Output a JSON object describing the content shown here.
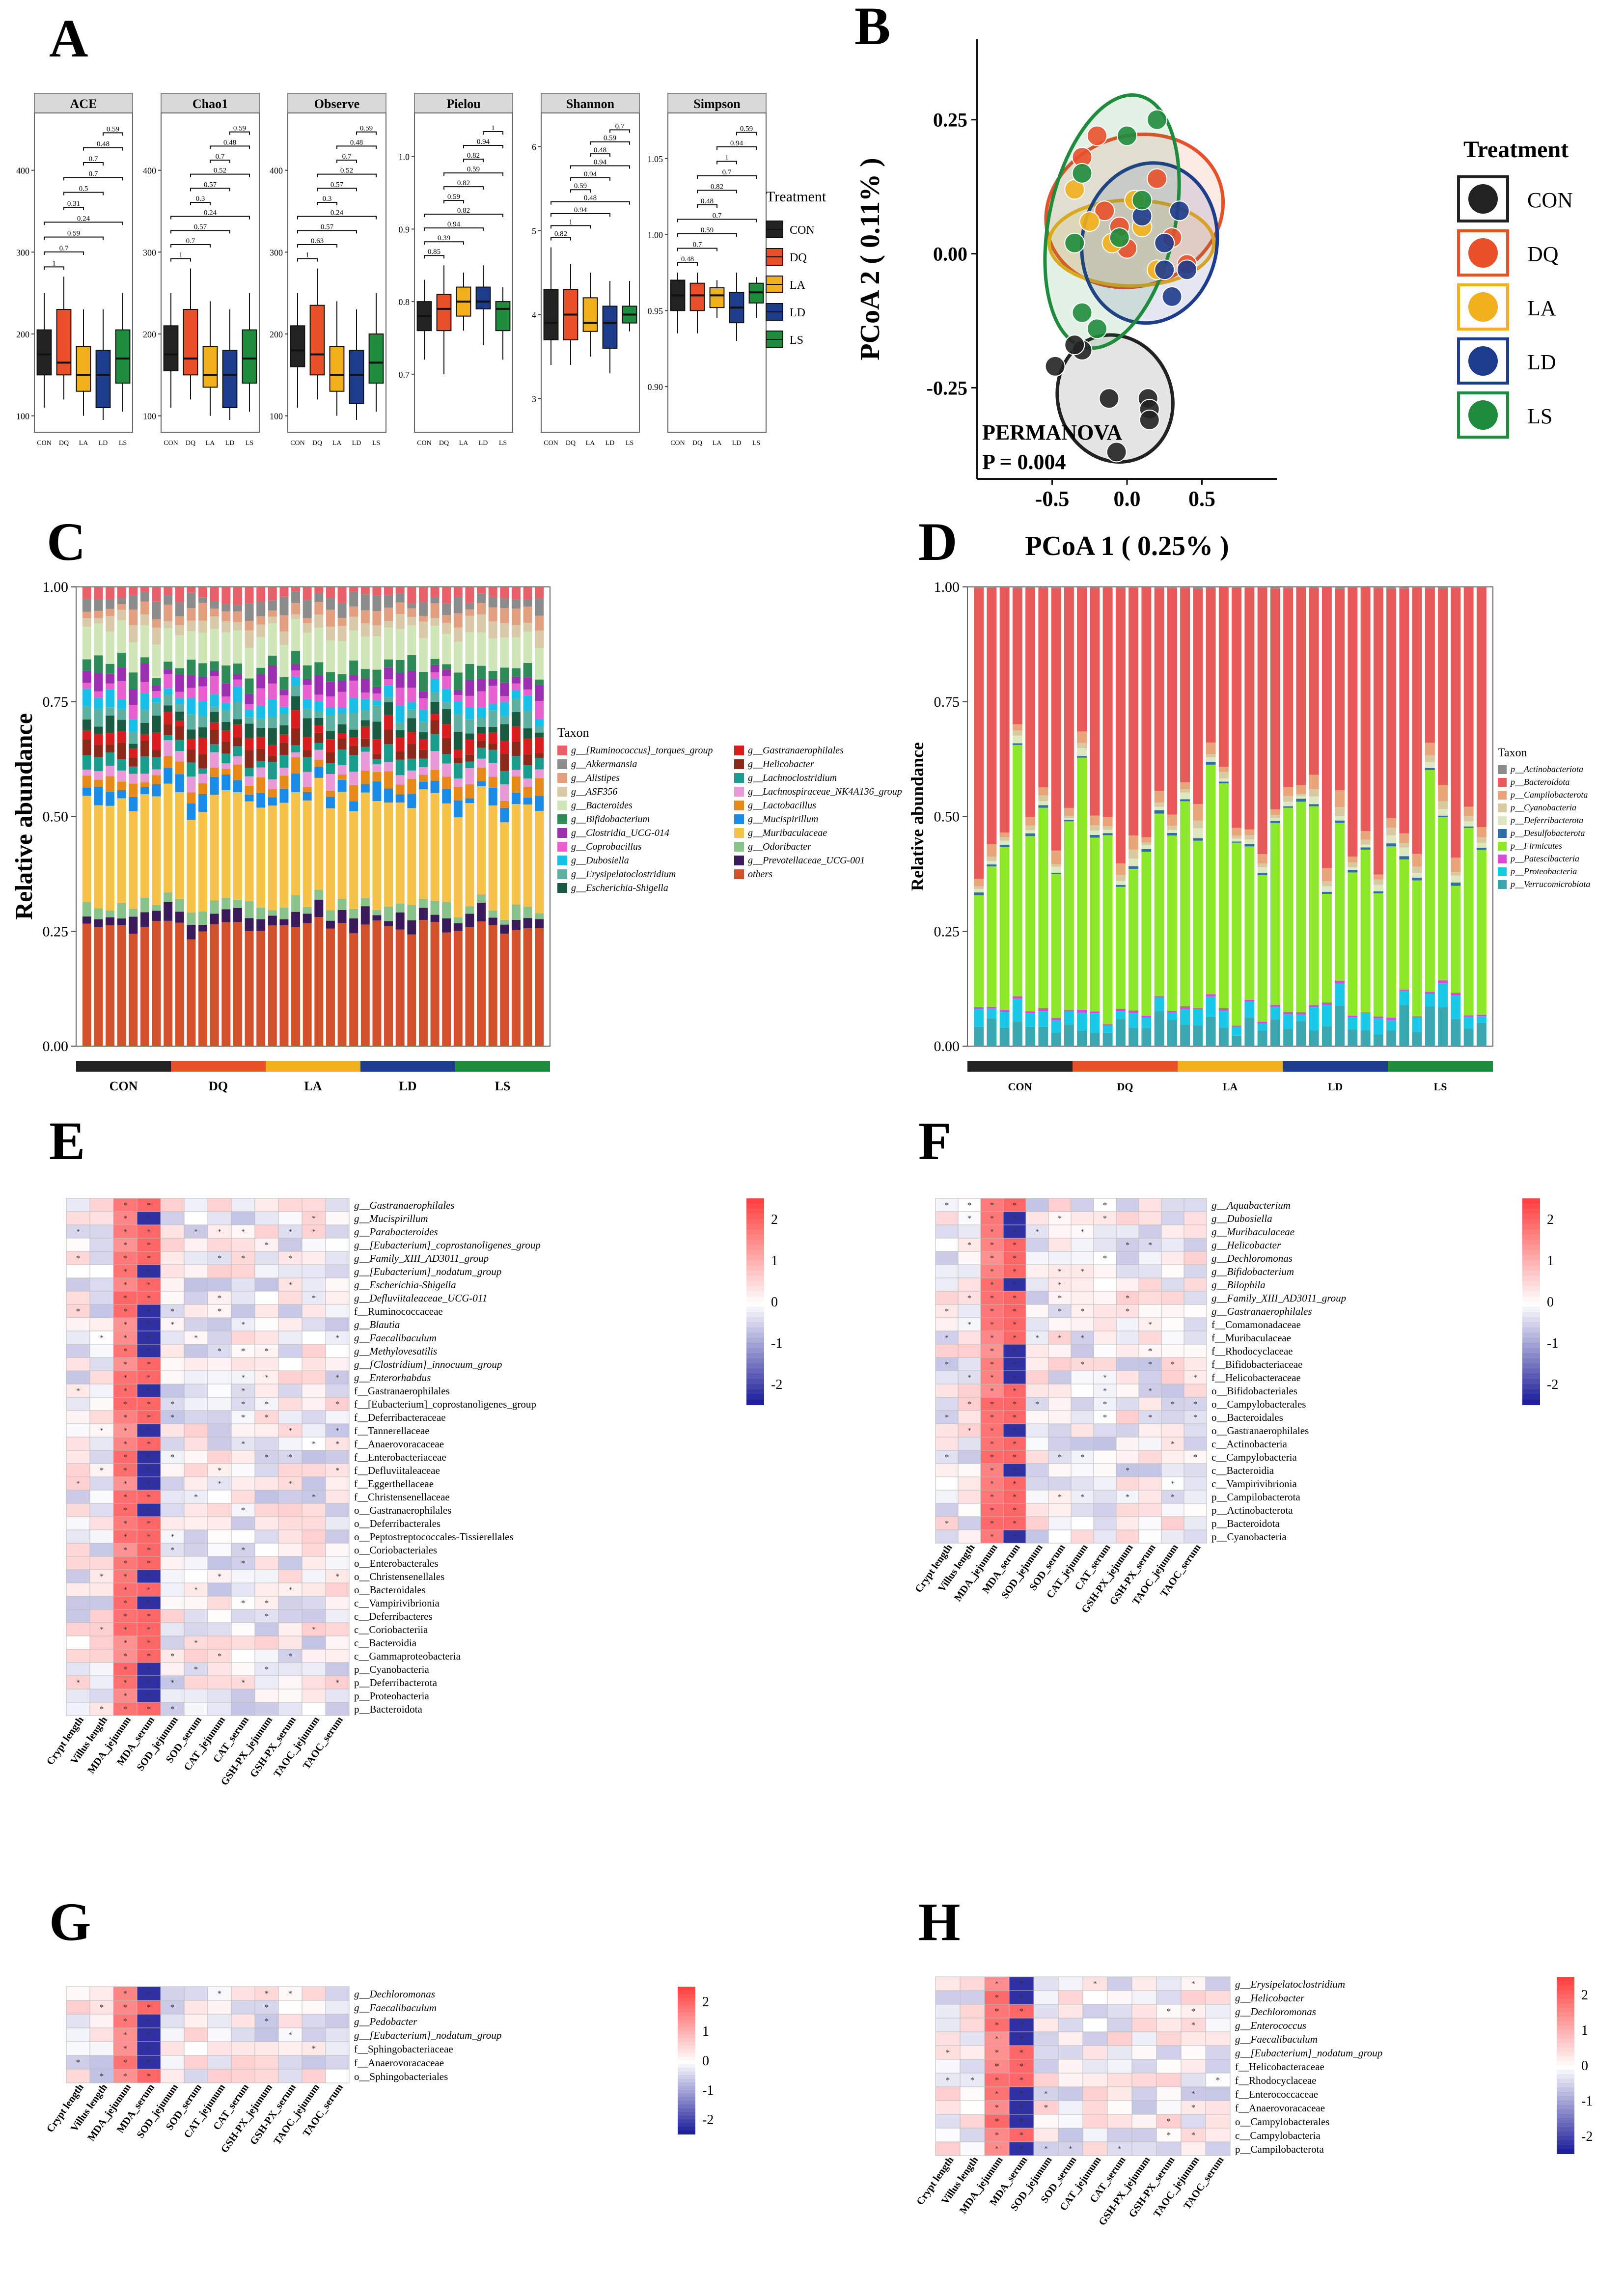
{
  "panels": {
    "A": "A",
    "B": "B",
    "C": "C",
    "D": "D",
    "E": "E",
    "F": "F",
    "G": "G",
    "H": "H"
  },
  "colors": {
    "CON": "#222222",
    "DQ": "#E8502A",
    "LA": "#F2B01C",
    "LD": "#1E3C8C",
    "LS": "#1E8C3C"
  },
  "groups": [
    "CON",
    "DQ",
    "LA",
    "LD",
    "LS"
  ],
  "alpha": {
    "legend_title": "Treatment",
    "x_ticks": [
      "CON",
      "DQ",
      "LA",
      "LD",
      "LS"
    ],
    "facets": [
      {
        "name": "ACE",
        "y_ticks": [
          "100",
          "200",
          "300",
          "400"
        ],
        "ylim": [
          80,
          470
        ],
        "boxes": [
          [
            110,
            150,
            175,
            205,
            250
          ],
          [
            120,
            150,
            165,
            230,
            270
          ],
          [
            100,
            130,
            150,
            185,
            230
          ],
          [
            95,
            110,
            150,
            180,
            230
          ],
          [
            105,
            140,
            170,
            205,
            250
          ]
        ],
        "pvals": [
          "1",
          "0.7",
          "0.59",
          "0.24",
          "0.31",
          "0.5",
          "0.7",
          "0.7",
          "0.48",
          "0.59"
        ]
      },
      {
        "name": "Chao1",
        "y_ticks": [
          "100",
          "200",
          "300",
          "400"
        ],
        "ylim": [
          80,
          470
        ],
        "boxes": [
          [
            110,
            155,
            175,
            210,
            250
          ],
          [
            120,
            150,
            170,
            230,
            280
          ],
          [
            100,
            135,
            150,
            185,
            240
          ],
          [
            95,
            110,
            150,
            180,
            230
          ],
          [
            105,
            140,
            170,
            205,
            250
          ]
        ],
        "pvals": [
          "1",
          "0.7",
          "0.57",
          "0.24",
          "0.3",
          "0.57",
          "0.52",
          "0.7",
          "0.48",
          "0.59"
        ]
      },
      {
        "name": "Observe",
        "y_ticks": [
          "100",
          "200",
          "300",
          "400"
        ],
        "ylim": [
          80,
          470
        ],
        "boxes": [
          [
            110,
            160,
            180,
            210,
            250
          ],
          [
            120,
            150,
            175,
            235,
            280
          ],
          [
            100,
            130,
            150,
            185,
            240
          ],
          [
            95,
            115,
            150,
            180,
            230
          ],
          [
            105,
            140,
            165,
            200,
            250
          ]
        ],
        "pvals": [
          "1",
          "0.63",
          "0.57",
          "0.24",
          "0.3",
          "0.57",
          "0.52",
          "0.7",
          "0.48",
          "0.59"
        ]
      },
      {
        "name": "Pielou",
        "y_ticks": [
          "0.7",
          "0.8",
          "0.9",
          "1.0"
        ],
        "ylim": [
          0.62,
          1.06
        ],
        "boxes": [
          [
            0.72,
            0.76,
            0.78,
            0.8,
            0.83
          ],
          [
            0.7,
            0.76,
            0.79,
            0.81,
            0.85
          ],
          [
            0.76,
            0.78,
            0.8,
            0.82,
            0.84
          ],
          [
            0.74,
            0.79,
            0.8,
            0.82,
            0.85
          ],
          [
            0.72,
            0.76,
            0.79,
            0.8,
            0.82
          ]
        ],
        "pvals": [
          "0.85",
          "0.39",
          "0.94",
          "0.82",
          "0.59",
          "0.82",
          "0.59",
          "0.82",
          "0.94",
          "1"
        ]
      },
      {
        "name": "Shannon",
        "y_ticks": [
          "3",
          "4",
          "5",
          "6"
        ],
        "ylim": [
          2.6,
          6.4
        ],
        "boxes": [
          [
            3.4,
            3.7,
            3.9,
            4.3,
            4.8
          ],
          [
            3.4,
            3.7,
            4.0,
            4.3,
            4.6
          ],
          [
            3.5,
            3.8,
            3.9,
            4.2,
            4.5
          ],
          [
            3.3,
            3.6,
            3.9,
            4.1,
            4.4
          ],
          [
            3.8,
            3.9,
            4.0,
            4.1,
            4.4
          ]
        ],
        "pvals": [
          "0.82",
          "1",
          "0.94",
          "0.48",
          "0.59",
          "0.94",
          "0.94",
          "0.48",
          "0.59",
          "0.7"
        ]
      },
      {
        "name": "Simpson",
        "y_ticks": [
          "0.90",
          "0.95",
          "1.00",
          "1.05"
        ],
        "ylim": [
          0.87,
          1.08
        ],
        "boxes": [
          [
            0.935,
            0.95,
            0.96,
            0.97,
            0.975
          ],
          [
            0.935,
            0.95,
            0.96,
            0.968,
            0.975
          ],
          [
            0.945,
            0.952,
            0.96,
            0.965,
            0.97
          ],
          [
            0.93,
            0.942,
            0.952,
            0.962,
            0.975
          ],
          [
            0.945,
            0.955,
            0.962,
            0.968,
            0.972
          ]
        ],
        "pvals": [
          "0.48",
          "0.7",
          "0.59",
          "0.7",
          "0.48",
          "0.82",
          "0.7",
          "1",
          "0.94",
          "0.59"
        ]
      }
    ]
  },
  "pcoa": {
    "xlabel": "PCoA 1 ( 0.25% )",
    "ylabel": "PCoA 2 ( 0.11% )",
    "x_ticks": [
      "-0.5",
      "0.0",
      "0.5"
    ],
    "y_ticks": [
      "-0.25",
      "0.00",
      "0.25"
    ],
    "annotation": "PERMANOVA",
    "pvalue_label": "P = ",
    "pvalue": "0.004",
    "legend_title": "Treatment",
    "points": {
      "CON": [
        [
          -0.48,
          -0.21
        ],
        [
          -0.3,
          -0.18
        ],
        [
          -0.35,
          -0.17
        ],
        [
          -0.12,
          -0.27
        ],
        [
          0.14,
          -0.27
        ],
        [
          0.15,
          -0.29
        ],
        [
          0.15,
          -0.31
        ],
        [
          -0.07,
          -0.37
        ]
      ],
      "DQ": [
        [
          -0.2,
          0.22
        ],
        [
          -0.3,
          0.18
        ],
        [
          -0.15,
          0.08
        ],
        [
          0.2,
          0.14
        ],
        [
          0.3,
          0.03
        ],
        [
          0.4,
          -0.02
        ],
        [
          -0.05,
          0.05
        ],
        [
          0.0,
          0.01
        ]
      ],
      "LA": [
        [
          -0.35,
          0.12
        ],
        [
          -0.25,
          0.06
        ],
        [
          0.1,
          0.05
        ],
        [
          0.2,
          -0.03
        ],
        [
          -0.1,
          0.02
        ],
        [
          0.05,
          0.1
        ]
      ],
      "LD": [
        [
          0.1,
          0.07
        ],
        [
          0.25,
          0.02
        ],
        [
          0.35,
          0.08
        ],
        [
          0.4,
          -0.03
        ],
        [
          0.25,
          -0.03
        ],
        [
          0.3,
          -0.08
        ]
      ],
      "LS": [
        [
          -0.3,
          0.15
        ],
        [
          -0.35,
          0.02
        ],
        [
          0.0,
          0.22
        ],
        [
          0.2,
          0.25
        ],
        [
          0.1,
          0.1
        ],
        [
          -0.05,
          0.03
        ],
        [
          -0.3,
          -0.11
        ],
        [
          -0.2,
          -0.14
        ]
      ]
    }
  },
  "genus": {
    "ylabel": "Relative abundance",
    "y_ticks": [
      "0.00",
      "0.25",
      "0.50",
      "0.75",
      "1.00"
    ],
    "legend_title": "Taxon",
    "taxa": [
      "g__[Ruminococcus]_torques_group",
      "g__Akkermansia",
      "g__Alistipes",
      "g__ASF356",
      "g__Bacteroides",
      "g__Bifidobacterium",
      "g__Clostridia_UCG-014",
      "g__Coprobacillus",
      "g__Dubosiella",
      "g__Erysipelatoclostridium",
      "g__Escherichia-Shigella",
      "g__Gastranaerophilales",
      "g__Helicobacter",
      "g__Lachnoclostridium",
      "g__Lachnospiraceae_NK4A136_group",
      "g__Lactobacillus",
      "g__Mucispirillum",
      "g__Muribaculaceae",
      "g__Odoribacter",
      "g__Prevotellaceae_UCG-001",
      "others"
    ],
    "colors": [
      "#E8606A",
      "#8C8C8C",
      "#E3A080",
      "#D8C9A8",
      "#CFE6B8",
      "#2E8B57",
      "#9B30B0",
      "#E85FD0",
      "#18C0E8",
      "#5FB0A0",
      "#1A5A40",
      "#D81E1E",
      "#8B2A1A",
      "#1A9C8C",
      "#E89AD8",
      "#E88A1A",
      "#1A8CE8",
      "#F7C24A",
      "#8AC28C",
      "#3A1A5A",
      "#D2502A"
    ]
  },
  "phylum": {
    "ylabel": "Relative abundance",
    "y_ticks": [
      "0.00",
      "0.25",
      "0.50",
      "0.75",
      "1.00"
    ],
    "legend_title": "Taxon",
    "taxa": [
      "p__Actinobacteriota",
      "p__Bacteroidota",
      "p__Campilobacterota",
      "p__Cyanobacteria",
      "p__Deferribacterota",
      "p__Desulfobacterota",
      "p__Firmicutes",
      "p__Patescibacteria",
      "p__Proteobacteria",
      "p__Verrucomicrobiota"
    ],
    "colors": [
      "#8C8C8C",
      "#E85A5A",
      "#E8A57A",
      "#D8C9A0",
      "#DDE8C0",
      "#2E6EA8",
      "#8EE82A",
      "#D84AD8",
      "#1AC8E8",
      "#3AA8B0"
    ]
  },
  "heatmaps": {
    "x_labels": [
      "Crypt length",
      "Villus length",
      "MDA_jejunum",
      "MDA_serum",
      "SOD_jejunum",
      "SOD_serum",
      "CAT_jejunum",
      "CAT_serum",
      "GSH-PX_jejunum",
      "GSH-PX_serum",
      "TAOC_jejunum",
      "TAOC_serum"
    ],
    "scale_ticks": [
      "2",
      "1",
      "0",
      "-1",
      "-2"
    ],
    "E": [
      "g__Gastranaerophilales",
      "g__Mucispirillum",
      "g__Parabacteroides",
      "g__[Eubacterium]_coprostanoligenes_group",
      "g__Family_XIII_AD3011_group",
      "g__[Eubacterium]_nodatum_group",
      "g__Escherichia-Shigella",
      "g__Defluviitaleaceae_UCG-011",
      "f__Ruminococcaceae",
      "g__Blautia",
      "g__Faecalibaculum",
      "g__Methylovesatilis",
      "g__[Clostridium]_innocuum_group",
      "g__Enterorhabdus",
      "f__Gastranaerophilales",
      "f__[Eubacterium]_coprostanoligenes_group",
      "f__Deferribacteraceae",
      "f__Tannerellaceae",
      "f__Anaerovoracaceae",
      "f__Enterobacteriaceae",
      "f__Defluviitaleaceae",
      "f__Eggerthellaceae",
      "f__Christensenellaceae",
      "o__Gastranaerophilales",
      "o__Deferribacterales",
      "o__Peptostreptococcales-Tissierellales",
      "o__Coriobacteriales",
      "o__Enterobacterales",
      "o__Christensenellales",
      "o__Bacteroidales",
      "c__Vampirivibrionia",
      "c__Deferribacteres",
      "c__Coriobacteriia",
      "c__Bacteroidia",
      "c__Gammaproteobacteria",
      "p__Cyanobacteria",
      "p__Deferribacterota",
      "p__Proteobacteria",
      "p__Bacteroidota"
    ],
    "F": [
      "g__Aquabacterium",
      "g__Dubosiella",
      "g__Muribaculaceae",
      "g__Helicobacter",
      "g__Dechloromonas",
      "g__Bifidobacterium",
      "g__Bilophila",
      "g__Family_XIII_AD3011_group",
      "g__Gastranaerophilales",
      "f__Comamonadaceae",
      "f__Muribaculaceae",
      "f__Rhodocyclaceae",
      "f__Bifidobacteriaceae",
      "f__Helicobacteraceae",
      "o__Bifidobacteriales",
      "o__Campylobacterales",
      "o__Bacteroidales",
      "o__Gastranaerophilales",
      "c__Actinobacteria",
      "c__Campylobacteria",
      "c__Bacteroidia",
      "c__Vampirivibrionia",
      "p__Campilobacterota",
      "p__Actinobacterota",
      "p__Bacteroidota",
      "p__Cyanobacteria"
    ],
    "G": [
      "g__Dechloromonas",
      "g__Faecalibaculum",
      "g__Pedobacter",
      "g__[Eubacterium]_nodatum_group",
      "f__Sphingobacteriaceae",
      "f__Anaerovoracaceae",
      "o__Sphingobacteriales"
    ],
    "H": [
      "g__Erysipelatoclostridium",
      "g__Helicobacter",
      "g__Dechloromonas",
      "g__Enterococcus",
      "g__Faecalibaculum",
      "g__[Eubacterium]_nodatum_group",
      "f__Helicobacteraceae",
      "f__Rhodocyclaceae",
      "f__Enterococcaceae",
      "f__Anaerovoracaceae",
      "o__Campylobacterales",
      "c__Campylobacteria",
      "p__Campilobacterota"
    ]
  }
}
